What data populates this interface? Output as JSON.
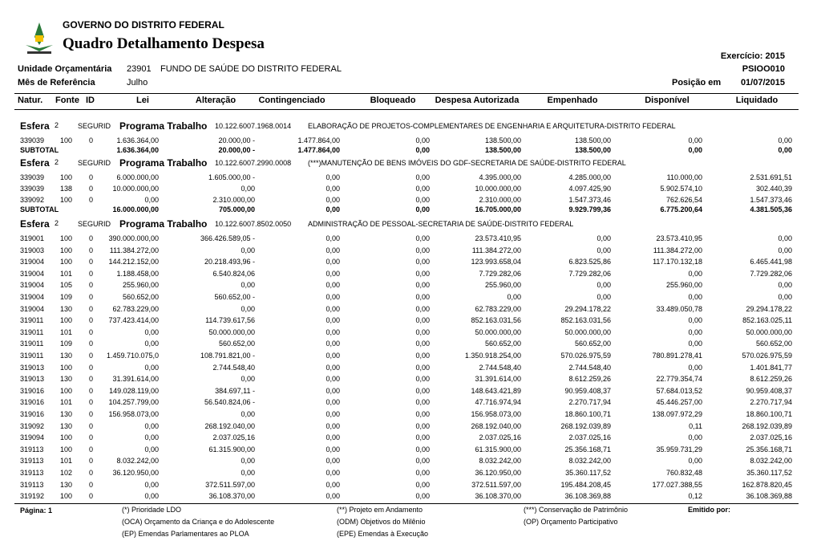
{
  "header": {
    "org": "GOVERNO DO DISTRITO FEDERAL",
    "title": "Quadro Detalhamento Despesa",
    "exercicio": "Exercício: 2015",
    "report_code": "PSIOO010",
    "unidade_label": "Unidade Orçamentária",
    "unidade_code": "23901",
    "unidade_name": "FUNDO DE SAÚDE DO DISTRITO FEDERAL",
    "mes_label": "Mês de Referência",
    "mes": "Julho",
    "posicao_label": "Posição em",
    "posicao": "01/07/2015"
  },
  "columns": [
    "Natur.",
    "Fonte",
    "ID",
    "Lei",
    "Alteração",
    "Contingenciado",
    "Bloqueado",
    "Despesa Autorizada",
    "Empenhado",
    "Disponível",
    "Liquidado"
  ],
  "sections": [
    {
      "esfera_label": "Esfera",
      "esfera": "2",
      "seguridade": "SEGURID",
      "programa_label": "Programa Trabalho",
      "programa": "10.122.6007.1968.0014",
      "descricao": "ELABORAÇÃO DE PROJETOS-COMPLEMENTARES DE ENGENHARIA E ARQUITETURA-DISTRITO FEDERAL",
      "rows": [
        [
          "339039",
          "100",
          "0",
          "1.636.364,00",
          "20.000,00 -",
          "1.477.864,00",
          "0,00",
          "138.500,00",
          "138.500,00",
          "0,00",
          "0,00"
        ]
      ],
      "subtotal": {
        "label": "SUBTOTAL",
        "values": [
          "1.636.364,00",
          "20.000,00 -",
          "1.477.864,00",
          "0,00",
          "138.500,00",
          "138.500,00",
          "0,00",
          "0,00"
        ]
      }
    },
    {
      "esfera_label": "Esfera",
      "esfera": "2",
      "seguridade": "SEGURID",
      "programa_label": "Programa Trabalho",
      "programa": "10.122.6007.2990.0008",
      "descricao": "(***)MANUTENÇÃO DE BENS IMÓVEIS DO GDF-SECRETARIA DE SAÚDE-DISTRITO FEDERAL",
      "rows": [
        [
          "339039",
          "100",
          "0",
          "6.000.000,00",
          "1.605.000,00 -",
          "0,00",
          "0,00",
          "4.395.000,00",
          "4.285.000,00",
          "110.000,00",
          "2.531.691,51"
        ],
        [
          "339039",
          "138",
          "0",
          "10.000.000,00",
          "0,00",
          "0,00",
          "0,00",
          "10.000.000,00",
          "4.097.425,90",
          "5.902.574,10",
          "302.440,39"
        ],
        [
          "339092",
          "100",
          "0",
          "0,00",
          "2.310.000,00",
          "0,00",
          "0,00",
          "2.310.000,00",
          "1.547.373,46",
          "762.626,54",
          "1.547.373,46"
        ]
      ],
      "subtotal": {
        "label": "SUBTOTAL",
        "values": [
          "16.000.000,00",
          "705.000,00",
          "0,00",
          "0,00",
          "16.705.000,00",
          "9.929.799,36",
          "6.775.200,64",
          "4.381.505,36"
        ]
      }
    },
    {
      "esfera_label": "Esfera",
      "esfera": "2",
      "seguridade": "SEGURID",
      "programa_label": "Programa Trabalho",
      "programa": "10.122.6007.8502.0050",
      "descricao": "ADMINISTRAÇÃO DE PESSOAL-SECRETARIA DE SAÚDE-DISTRITO FEDERAL",
      "rows": [
        [
          "319001",
          "100",
          "0",
          "390.000.000,00",
          "366.426.589,05 -",
          "0,00",
          "0,00",
          "23.573.410,95",
          "0,00",
          "23.573.410,95",
          "0,00"
        ],
        [
          "319003",
          "100",
          "0",
          "111.384.272,00",
          "0,00",
          "0,00",
          "0,00",
          "111.384.272,00",
          "0,00",
          "111.384.272,00",
          "0,00"
        ],
        [
          "319004",
          "100",
          "0",
          "144.212.152,00",
          "20.218.493,96 -",
          "0,00",
          "0,00",
          "123.993.658,04",
          "6.823.525,86",
          "117.170.132,18",
          "6.465.441,98"
        ],
        [
          "319004",
          "101",
          "0",
          "1.188.458,00",
          "6.540.824,06",
          "0,00",
          "0,00",
          "7.729.282,06",
          "7.729.282,06",
          "0,00",
          "7.729.282,06"
        ],
        [
          "319004",
          "105",
          "0",
          "255.960,00",
          "0,00",
          "0,00",
          "0,00",
          "255.960,00",
          "0,00",
          "255.960,00",
          "0,00"
        ],
        [
          "319004",
          "109",
          "0",
          "560.652,00",
          "560.652,00 -",
          "0,00",
          "0,00",
          "0,00",
          "0,00",
          "0,00",
          "0,00"
        ],
        [
          "319004",
          "130",
          "0",
          "62.783.229,00",
          "0,00",
          "0,00",
          "0,00",
          "62.783.229,00",
          "29.294.178,22",
          "33.489.050,78",
          "29.294.178,22"
        ],
        [
          "319011",
          "100",
          "0",
          "737.423.414,00",
          "114.739.617,56",
          "0,00",
          "0,00",
          "852.163.031,56",
          "852.163.031,56",
          "0,00",
          "852.163.025,11"
        ],
        [
          "319011",
          "101",
          "0",
          "0,00",
          "50.000.000,00",
          "0,00",
          "0,00",
          "50.000.000,00",
          "50.000.000,00",
          "0,00",
          "50.000.000,00"
        ],
        [
          "319011",
          "109",
          "0",
          "0,00",
          "560.652,00",
          "0,00",
          "0,00",
          "560.652,00",
          "560.652,00",
          "0,00",
          "560.652,00"
        ],
        [
          "319011",
          "130",
          "0",
          "1.459.710.075,0",
          "108.791.821,00 -",
          "0,00",
          "0,00",
          "1.350.918.254,00",
          "570.026.975,59",
          "780.891.278,41",
          "570.026.975,59"
        ],
        [
          "319013",
          "100",
          "0",
          "0,00",
          "2.744.548,40",
          "0,00",
          "0,00",
          "2.744.548,40",
          "2.744.548,40",
          "0,00",
          "1.401.841,77"
        ],
        [
          "319013",
          "130",
          "0",
          "31.391.614,00",
          "0,00",
          "0,00",
          "0,00",
          "31.391.614,00",
          "8.612.259,26",
          "22.779.354,74",
          "8.612.259,26"
        ],
        [
          "319016",
          "100",
          "0",
          "149.028.119,00",
          "384.697,11 -",
          "0,00",
          "0,00",
          "148.643.421,89",
          "90.959.408,37",
          "57.684.013,52",
          "90.959.408,37"
        ],
        [
          "319016",
          "101",
          "0",
          "104.257.799,00",
          "56.540.824,06 -",
          "0,00",
          "0,00",
          "47.716.974,94",
          "2.270.717,94",
          "45.446.257,00",
          "2.270.717,94"
        ],
        [
          "319016",
          "130",
          "0",
          "156.958.073,00",
          "0,00",
          "0,00",
          "0,00",
          "156.958.073,00",
          "18.860.100,71",
          "138.097.972,29",
          "18.860.100,71"
        ],
        [
          "319092",
          "130",
          "0",
          "0,00",
          "268.192.040,00",
          "0,00",
          "0,00",
          "268.192.040,00",
          "268.192.039,89",
          "0,11",
          "268.192.039,89"
        ],
        [
          "319094",
          "100",
          "0",
          "0,00",
          "2.037.025,16",
          "0,00",
          "0,00",
          "2.037.025,16",
          "2.037.025,16",
          "0,00",
          "2.037.025,16"
        ],
        [
          "319113",
          "100",
          "0",
          "0,00",
          "61.315.900,00",
          "0,00",
          "0,00",
          "61.315.900,00",
          "25.356.168,71",
          "35.959.731,29",
          "25.356.168,71"
        ],
        [
          "319113",
          "101",
          "0",
          "8.032.242,00",
          "0,00",
          "0,00",
          "0,00",
          "8.032.242,00",
          "8.032.242,00",
          "0,00",
          "8.032.242,00"
        ],
        [
          "319113",
          "102",
          "0",
          "36.120.950,00",
          "0,00",
          "0,00",
          "0,00",
          "36.120.950,00",
          "35.360.117,52",
          "760.832,48",
          "35.360.117,52"
        ],
        [
          "319113",
          "130",
          "0",
          "0,00",
          "372.511.597,00",
          "0,00",
          "0,00",
          "372.511.597,00",
          "195.484.208,45",
          "177.027.388,55",
          "162.878.820,45"
        ],
        [
          "319192",
          "100",
          "0",
          "0,00",
          "36.108.370,00",
          "0,00",
          "0,00",
          "36.108.370,00",
          "36.108.369,88",
          "0,12",
          "36.108.369,88"
        ]
      ]
    }
  ],
  "footer": {
    "page": "Página: 1",
    "emitido": "Emitido por:",
    "legend": [
      [
        "(*) Prioridade LDO",
        "(OCA) Orçamento da Criança e do Adolescente",
        "(EP) Emendas Parlamentares ao PLOA"
      ],
      [
        "(**) Projeto em Andamento",
        "(ODM) Objetivos do Milênio",
        "(EPE) Emendas à Execução"
      ],
      [
        "(***) Conservação de Patrimônio",
        "(OP) Orçamento Participativo"
      ]
    ]
  }
}
